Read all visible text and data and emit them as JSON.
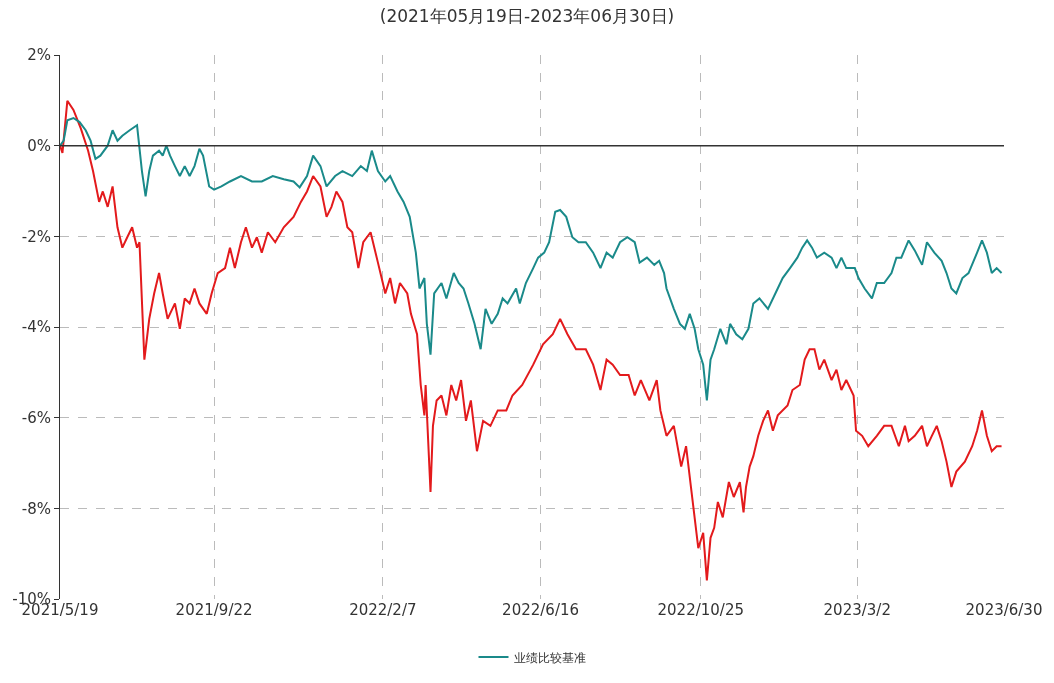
{
  "chart_data": {
    "type": "line",
    "title": "(2021年05月19日-2023年06月30日)",
    "xlim": [
      "2021-05-19",
      "2023-06-30"
    ],
    "xticks": [
      {
        "value": "2021-05-19",
        "label": "2021/5/19"
      },
      {
        "value": "2021-09-22",
        "label": "2021/9/22"
      },
      {
        "value": "2022-02-07",
        "label": "2022/2/7"
      },
      {
        "value": "2022-06-16",
        "label": "2022/6/16"
      },
      {
        "value": "2022-10-25",
        "label": "2022/10/25"
      },
      {
        "value": "2023-03-02",
        "label": "2023/3/2"
      },
      {
        "value": "2023-06-30",
        "label": "2023/6/30"
      }
    ],
    "ylim": [
      -10,
      2
    ],
    "yticks": [
      {
        "value": -10,
        "label": "-10%"
      },
      {
        "value": -8,
        "label": "-8%"
      },
      {
        "value": -6,
        "label": "-6%"
      },
      {
        "value": -4,
        "label": "-4%"
      },
      {
        "value": -2,
        "label": "-2%"
      },
      {
        "value": 0,
        "label": "0%"
      },
      {
        "value": 2,
        "label": "2%"
      }
    ],
    "grid": true,
    "legend": "bottom",
    "marker": "none",
    "line_style": "solid",
    "ref_lines": [
      {
        "axis": "y",
        "value": 0,
        "color": "#333333"
      }
    ],
    "series": [
      {
        "color": "#e31a1c",
        "x": [
          "2021-05-19",
          "2021-05-21",
          "2021-05-25",
          "2021-05-30",
          "2021-06-05",
          "2021-06-11",
          "2021-06-15",
          "2021-06-20",
          "2021-06-23",
          "2021-06-27",
          "2021-07-01",
          "2021-07-05",
          "2021-07-09",
          "2021-07-13",
          "2021-07-17",
          "2021-07-21",
          "2021-07-23",
          "2021-07-27",
          "2021-07-31",
          "2021-08-04",
          "2021-08-08",
          "2021-08-11",
          "2021-08-15",
          "2021-08-21",
          "2021-08-25",
          "2021-08-29",
          "2021-09-02",
          "2021-09-06",
          "2021-09-10",
          "2021-09-16",
          "2021-09-20",
          "2021-09-25",
          "2021-10-01",
          "2021-10-05",
          "2021-10-09",
          "2021-10-14",
          "2021-10-18",
          "2021-10-23",
          "2021-10-27",
          "2021-10-31",
          "2021-11-05",
          "2021-11-11",
          "2021-11-18",
          "2021-11-26",
          "2021-12-02",
          "2021-12-07",
          "2021-12-12",
          "2021-12-18",
          "2021-12-23",
          "2021-12-27",
          "2021-12-31",
          "2022-01-05",
          "2022-01-09",
          "2022-01-13",
          "2022-01-18",
          "2022-01-22",
          "2022-01-28",
          "2022-02-03",
          "2022-02-07",
          "2022-02-09",
          "2022-02-13",
          "2022-02-17",
          "2022-02-21",
          "2022-02-27",
          "2022-03-02",
          "2022-03-07",
          "2022-03-10",
          "2022-03-13",
          "2022-03-14",
          "2022-03-18",
          "2022-03-20",
          "2022-03-23",
          "2022-03-27",
          "2022-03-31",
          "2022-04-04",
          "2022-04-08",
          "2022-04-12",
          "2022-04-16",
          "2022-04-20",
          "2022-04-25",
          "2022-04-30",
          "2022-05-06",
          "2022-05-12",
          "2022-05-19",
          "2022-05-24",
          "2022-06-01",
          "2022-06-10",
          "2022-06-18",
          "2022-06-26",
          "2022-07-02",
          "2022-07-08",
          "2022-07-15",
          "2022-07-23",
          "2022-07-29",
          "2022-08-04",
          "2022-08-09",
          "2022-08-14",
          "2022-08-20",
          "2022-08-27",
          "2022-09-01",
          "2022-09-06",
          "2022-09-13",
          "2022-09-19",
          "2022-09-22",
          "2022-09-27",
          "2022-10-03",
          "2022-10-09",
          "2022-10-13",
          "2022-10-17",
          "2022-10-23",
          "2022-10-27",
          "2022-10-30",
          "2022-11-02",
          "2022-11-05",
          "2022-11-08",
          "2022-11-12",
          "2022-11-17",
          "2022-11-21",
          "2022-11-26",
          "2022-11-29",
          "2022-12-01",
          "2022-12-04",
          "2022-12-07",
          "2022-12-11",
          "2022-12-15",
          "2022-12-19",
          "2022-12-23",
          "2022-12-27",
          "2023-01-04",
          "2023-01-08",
          "2023-01-14",
          "2023-01-18",
          "2023-01-22",
          "2023-01-26",
          "2023-01-30",
          "2023-02-03",
          "2023-02-09",
          "2023-02-13",
          "2023-02-17",
          "2023-02-21",
          "2023-02-27",
          "2023-03-01",
          "2023-03-06",
          "2023-03-11",
          "2023-03-18",
          "2023-03-24",
          "2023-03-30",
          "2023-04-05",
          "2023-04-10",
          "2023-04-13",
          "2023-04-18",
          "2023-04-24",
          "2023-04-28",
          "2023-05-02",
          "2023-05-06",
          "2023-05-10",
          "2023-05-14",
          "2023-05-18",
          "2023-05-22",
          "2023-05-29",
          "2023-06-04",
          "2023-06-08",
          "2023-06-12",
          "2023-06-16",
          "2023-06-20",
          "2023-06-24",
          "2023-06-28"
        ],
        "values": [
          0,
          -0.16,
          0.99,
          0.79,
          0.38,
          -0.11,
          -0.56,
          -1.24,
          -1.01,
          -1.35,
          -0.9,
          -1.8,
          -2.25,
          -2.02,
          -1.8,
          -2.25,
          -2.13,
          -4.72,
          -3.82,
          -3.26,
          -2.81,
          -3.26,
          -3.82,
          -3.48,
          -4.04,
          -3.37,
          -3.48,
          -3.15,
          -3.48,
          -3.71,
          -3.26,
          -2.81,
          -2.7,
          -2.25,
          -2.7,
          -2.13,
          -1.8,
          -2.25,
          -2.02,
          -2.36,
          -1.91,
          -2.13,
          -1.8,
          -1.57,
          -1.24,
          -1.01,
          -0.67,
          -0.9,
          -1.57,
          -1.35,
          -1.01,
          -1.24,
          -1.8,
          -1.91,
          -2.7,
          -2.13,
          -1.91,
          -2.58,
          -3.03,
          -3.26,
          -2.92,
          -3.48,
          -3.03,
          -3.26,
          -3.71,
          -4.16,
          -5.28,
          -5.95,
          -5.28,
          -7.64,
          -6.18,
          -5.62,
          -5.51,
          -5.95,
          -5.28,
          -5.62,
          -5.17,
          -6.07,
          -5.62,
          -6.74,
          -6.07,
          -6.18,
          -5.84,
          -5.84,
          -5.51,
          -5.28,
          -4.83,
          -4.38,
          -4.16,
          -3.82,
          -4.16,
          -4.49,
          -4.49,
          -4.83,
          -5.39,
          -4.72,
          -4.83,
          -5.06,
          -5.06,
          -5.51,
          -5.17,
          -5.62,
          -5.17,
          -5.84,
          -6.4,
          -6.18,
          -7.08,
          -6.63,
          -7.53,
          -8.88,
          -8.54,
          -9.59,
          -8.65,
          -8.43,
          -7.86,
          -8.2,
          -7.42,
          -7.75,
          -7.42,
          -8.09,
          -7.53,
          -7.08,
          -6.85,
          -6.4,
          -6.07,
          -5.84,
          -6.29,
          -5.95,
          -5.73,
          -5.39,
          -5.28,
          -4.72,
          -4.49,
          -4.49,
          -4.94,
          -4.72,
          -5.17,
          -4.94,
          -5.39,
          -5.17,
          -5.51,
          -6.29,
          -6.4,
          -6.63,
          -6.4,
          -6.18,
          -6.18,
          -6.63,
          -6.18,
          -6.52,
          -6.4,
          -6.18,
          -6.63,
          -6.4,
          -6.18,
          -6.52,
          -6.97,
          -7.53,
          -7.19,
          -6.97,
          -6.63,
          -6.29,
          -5.84,
          -6.4,
          -6.74,
          -6.63,
          -6.63
        ]
      },
      {
        "name": "业绩比较基准",
        "color": "#1a8a8a",
        "x": [
          "2021-05-19",
          "2021-05-22",
          "2021-05-25",
          "2021-05-30",
          "2021-06-04",
          "2021-06-09",
          "2021-06-13",
          "2021-06-17",
          "2021-06-21",
          "2021-06-27",
          "2021-07-01",
          "2021-07-05",
          "2021-07-09",
          "2021-07-15",
          "2021-07-21",
          "2021-07-25",
          "2021-07-28",
          "2021-07-31",
          "2021-08-03",
          "2021-08-08",
          "2021-08-11",
          "2021-08-14",
          "2021-08-17",
          "2021-08-21",
          "2021-08-25",
          "2021-08-29",
          "2021-09-02",
          "2021-09-06",
          "2021-09-10",
          "2021-09-13",
          "2021-09-18",
          "2021-09-22",
          "2021-09-28",
          "2021-10-05",
          "2021-10-14",
          "2021-10-23",
          "2021-10-31",
          "2021-11-09",
          "2021-11-18",
          "2021-11-26",
          "2021-12-01",
          "2021-12-07",
          "2021-12-12",
          "2021-12-18",
          "2021-12-23",
          "2021-12-30",
          "2022-01-05",
          "2022-01-13",
          "2022-01-20",
          "2022-01-25",
          "2022-01-29",
          "2022-02-03",
          "2022-02-09",
          "2022-02-13",
          "2022-02-19",
          "2022-02-24",
          "2022-03-01",
          "2022-03-06",
          "2022-03-09",
          "2022-03-13",
          "2022-03-15",
          "2022-03-18",
          "2022-03-21",
          "2022-03-27",
          "2022-03-31",
          "2022-04-06",
          "2022-04-10",
          "2022-04-14",
          "2022-04-18",
          "2022-04-23",
          "2022-04-28",
          "2022-05-02",
          "2022-05-07",
          "2022-05-12",
          "2022-05-16",
          "2022-05-20",
          "2022-05-27",
          "2022-05-30",
          "2022-06-04",
          "2022-06-10",
          "2022-06-14",
          "2022-06-19",
          "2022-06-23",
          "2022-06-28",
          "2022-07-02",
          "2022-07-07",
          "2022-07-12",
          "2022-07-17",
          "2022-07-23",
          "2022-07-29",
          "2022-08-04",
          "2022-08-09",
          "2022-08-14",
          "2022-08-20",
          "2022-08-26",
          "2022-09-01",
          "2022-09-05",
          "2022-09-11",
          "2022-09-17",
          "2022-09-21",
          "2022-09-25",
          "2022-09-27",
          "2022-10-03",
          "2022-10-08",
          "2022-10-12",
          "2022-10-16",
          "2022-10-20",
          "2022-10-23",
          "2022-10-27",
          "2022-10-30",
          "2022-11-02",
          "2022-11-05",
          "2022-11-10",
          "2022-11-15",
          "2022-11-18",
          "2022-11-23",
          "2022-11-28",
          "2022-12-03",
          "2022-12-07",
          "2022-12-12",
          "2022-12-19",
          "2022-12-25",
          "2022-12-31",
          "2023-01-06",
          "2023-01-12",
          "2023-01-16",
          "2023-01-20",
          "2023-01-24",
          "2023-01-28",
          "2023-02-03",
          "2023-02-09",
          "2023-02-13",
          "2023-02-17",
          "2023-02-21",
          "2023-02-28",
          "2023-03-03",
          "2023-03-08",
          "2023-03-14",
          "2023-03-18",
          "2023-03-24",
          "2023-03-30",
          "2023-04-03",
          "2023-04-07",
          "2023-04-13",
          "2023-04-18",
          "2023-04-24",
          "2023-04-28",
          "2023-05-04",
          "2023-05-10",
          "2023-05-14",
          "2023-05-18",
          "2023-05-22",
          "2023-05-27",
          "2023-06-01",
          "2023-06-08",
          "2023-06-12",
          "2023-06-16",
          "2023-06-20",
          "2023-06-24",
          "2023-06-28"
        ],
        "values": [
          0,
          0.11,
          0.56,
          0.61,
          0.52,
          0.34,
          0.11,
          -0.29,
          -0.22,
          0,
          0.34,
          0.11,
          0.22,
          0.34,
          0.45,
          -0.56,
          -1.12,
          -0.56,
          -0.22,
          -0.11,
          -0.22,
          0,
          -0.22,
          -0.45,
          -0.67,
          -0.45,
          -0.67,
          -0.45,
          -0.07,
          -0.22,
          -0.9,
          -0.97,
          -0.9,
          -0.79,
          -0.67,
          -0.79,
          -0.79,
          -0.67,
          -0.74,
          -0.79,
          -0.92,
          -0.67,
          -0.22,
          -0.45,
          -0.9,
          -0.67,
          -0.56,
          -0.67,
          -0.45,
          -0.56,
          -0.11,
          -0.56,
          -0.79,
          -0.67,
          -1.01,
          -1.24,
          -1.57,
          -2.36,
          -3.15,
          -2.92,
          -3.93,
          -4.61,
          -3.26,
          -3.03,
          -3.37,
          -2.81,
          -3.03,
          -3.15,
          -3.48,
          -3.93,
          -4.49,
          -3.6,
          -3.93,
          -3.71,
          -3.37,
          -3.48,
          -3.15,
          -3.48,
          -3.03,
          -2.7,
          -2.47,
          -2.36,
          -2.13,
          -1.46,
          -1.42,
          -1.57,
          -2.02,
          -2.13,
          -2.13,
          -2.36,
          -2.7,
          -2.36,
          -2.47,
          -2.13,
          -2.02,
          -2.13,
          -2.58,
          -2.47,
          -2.63,
          -2.54,
          -2.81,
          -3.15,
          -3.6,
          -3.93,
          -4.04,
          -3.71,
          -4.04,
          -4.49,
          -4.83,
          -5.62,
          -4.72,
          -4.49,
          -4.04,
          -4.38,
          -3.93,
          -4.16,
          -4.27,
          -4.04,
          -3.48,
          -3.37,
          -3.6,
          -3.26,
          -2.92,
          -2.7,
          -2.47,
          -2.25,
          -2.09,
          -2.25,
          -2.47,
          -2.36,
          -2.47,
          -2.7,
          -2.47,
          -2.7,
          -2.7,
          -2.92,
          -3.15,
          -3.37,
          -3.03,
          -3.03,
          -2.81,
          -2.47,
          -2.47,
          -2.09,
          -2.31,
          -2.63,
          -2.13,
          -2.36,
          -2.54,
          -2.81,
          -3.15,
          -3.26,
          -2.92,
          -2.81,
          -2.36,
          -2.09,
          -2.36,
          -2.81,
          -2.7,
          -2.81
        ]
      }
    ]
  }
}
